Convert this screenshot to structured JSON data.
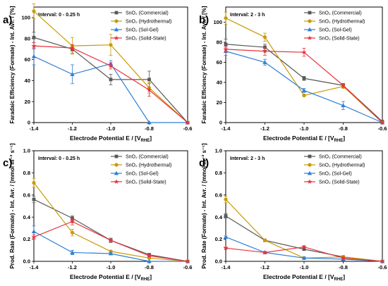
{
  "colors": {
    "commercial": "#595959",
    "hydrothermal": "#c99a06",
    "solgel": "#2e7fd6",
    "solidstate": "#e8333d"
  },
  "legend_labels": {
    "commercial": "SnO₂ (Commercial)",
    "hydrothermal": "SnO₂ (Hydrothermal)",
    "solgel": "SnO₂ (Sol-Gel)",
    "solidstate": "SnO₂ (Solid-State)"
  },
  "chart_data": [
    {
      "type": "line",
      "panel": "a)",
      "annotation": "Interval: 0 - 0.25 h",
      "xlabel": "Electrode Potential E / [V",
      "xlabel_sub": "RHE",
      "xlabel_end": "]",
      "ylabel": "Faradaic Efficiency (Formate) - Int. Avr. / [%]",
      "x": [
        -1.4,
        -1.2,
        -1.0,
        -0.8,
        -0.6
      ],
      "xticks": [
        "-1.4",
        "-1.2",
        "-1.0",
        "-0.8",
        "-0.6"
      ],
      "xlim": [
        -1.4,
        -0.6
      ],
      "ylim": [
        0,
        110
      ],
      "yticks": [
        0,
        20,
        40,
        60,
        80,
        100
      ],
      "series": [
        {
          "key": "commercial",
          "name": "SnO₂ (Commercial)",
          "values": [
            81,
            70,
            41,
            41,
            0
          ],
          "errors": [
            5,
            4,
            5,
            8,
            0
          ]
        },
        {
          "key": "hydrothermal",
          "name": "SnO₂ (Hydrothermal)",
          "values": [
            106,
            73,
            74,
            33,
            0
          ],
          "errors": [
            7,
            8,
            10,
            5,
            0
          ]
        },
        {
          "key": "solgel",
          "name": "SnO₂ (Sol-Gel)",
          "values": [
            63,
            46,
            56,
            0,
            0
          ],
          "errors": [
            8,
            9,
            3,
            0,
            0
          ]
        },
        {
          "key": "solidstate",
          "name": "SnO₂ (Solid-State)",
          "values": [
            73,
            71,
            54,
            31,
            0
          ],
          "errors": [
            3,
            3,
            3,
            6,
            0
          ]
        }
      ]
    },
    {
      "type": "line",
      "panel": "b)",
      "annotation": "Interval: 2 - 3 h",
      "xlabel": "Electrode Potential E / [V",
      "xlabel_sub": "RHE",
      "xlabel_end": "]",
      "ylabel": "Faradaic Efficiency (Formate) - Int. Avr. / [%]",
      "x": [
        -1.4,
        -1.2,
        -1.0,
        -0.8,
        -0.6
      ],
      "xticks": [
        "-1.4",
        "-1.2",
        "-1.0",
        "-0.8",
        "-0.6"
      ],
      "xlim": [
        -1.4,
        -0.6
      ],
      "ylim": [
        0,
        115
      ],
      "yticks": [
        0,
        20,
        40,
        60,
        80,
        100
      ],
      "series": [
        {
          "key": "commercial",
          "name": "SnO₂ (Commercial)",
          "values": [
            78,
            75,
            44,
            37,
            1
          ],
          "errors": [
            5,
            3,
            2,
            2,
            0
          ]
        },
        {
          "key": "hydrothermal",
          "name": "SnO₂ (Hydrothermal)",
          "values": [
            104,
            85,
            27,
            36,
            0
          ],
          "errors": [
            6,
            4,
            1,
            2,
            0
          ]
        },
        {
          "key": "solgel",
          "name": "SnO₂ (Sol-Gel)",
          "values": [
            71,
            60,
            32,
            17,
            0
          ],
          "errors": [
            4,
            3,
            2,
            4,
            0
          ]
        },
        {
          "key": "solidstate",
          "name": "SnO₂ (Solid-State)",
          "values": [
            73,
            71,
            70,
            37,
            0
          ],
          "errors": [
            3,
            4,
            4,
            2,
            0
          ]
        }
      ]
    },
    {
      "type": "line",
      "panel": "c)",
      "annotation": "Interval: 0 - 0.25 h",
      "xlabel": "Electrode Potential E / [V",
      "xlabel_sub": "RHE",
      "xlabel_end": "]",
      "ylabel": "Prod. Rate (Formate) - Int. Avr. / [mmol m⁻² s⁻¹]",
      "x": [
        -1.4,
        -1.2,
        -1.0,
        -0.8,
        -0.6
      ],
      "xticks": [
        "-1.4",
        "-1.2",
        "-1.0",
        "-0.8",
        "-0.6"
      ],
      "xlim": [
        -1.4,
        -0.6
      ],
      "ylim": [
        0,
        1.0
      ],
      "yticks": [
        0,
        0.2,
        0.4,
        0.6,
        0.8,
        1.0
      ],
      "ytick_labels": [
        "0.0",
        "0.2",
        "0.4",
        "0.6",
        "0.8",
        "1.0"
      ],
      "series": [
        {
          "key": "commercial",
          "name": "SnO₂ (Commercial)",
          "values": [
            0.56,
            0.39,
            0.19,
            0.06,
            0.0
          ],
          "errors": [
            0.03,
            0.02,
            0.02,
            0.01,
            0
          ]
        },
        {
          "key": "hydrothermal",
          "name": "SnO₂ (Hydrothermal)",
          "values": [
            0.71,
            0.26,
            0.09,
            0.03,
            0.0
          ],
          "errors": [
            0.04,
            0.03,
            0.01,
            0.01,
            0
          ]
        },
        {
          "key": "solgel",
          "name": "SnO₂ (Sol-Gel)",
          "values": [
            0.27,
            0.08,
            0.07,
            0.0,
            0.0
          ],
          "errors": [
            0.05,
            0.02,
            0.01,
            0,
            0
          ]
        },
        {
          "key": "solidstate",
          "name": "SnO₂ (Solid-State)",
          "values": [
            0.22,
            0.36,
            0.19,
            0.05,
            0.0
          ],
          "errors": [
            0.02,
            0.03,
            0.01,
            0.01,
            0
          ]
        }
      ]
    },
    {
      "type": "line",
      "panel": "d)",
      "annotation": "Interval: 2 - 3 h",
      "xlabel": "Electrode Potential E / [V",
      "xlabel_sub": "RHE",
      "xlabel_end": "]",
      "ylabel": "Prod. Rate (Formate) - Int. Avr. / [mmol m⁻² s⁻¹]",
      "x": [
        -1.4,
        -1.2,
        -1.0,
        -0.8,
        -0.6
      ],
      "xticks": [
        "-1.4",
        "-1.2",
        "-1.0",
        "-0.8",
        "-0.6"
      ],
      "xlim": [
        -1.4,
        -0.6
      ],
      "ylim": [
        0,
        1.0
      ],
      "yticks": [
        0,
        0.2,
        0.4,
        0.6,
        0.8,
        1.0
      ],
      "ytick_labels": [
        "0.0",
        "0.2",
        "0.4",
        "0.6",
        "0.8",
        "1.0"
      ],
      "series": [
        {
          "key": "commercial",
          "name": "SnO₂ (Commercial)",
          "values": [
            0.41,
            0.19,
            0.11,
            0.04,
            0.0
          ],
          "errors": [
            0.02,
            0.01,
            0.01,
            0.01,
            0
          ]
        },
        {
          "key": "hydrothermal",
          "name": "SnO₂ (Hydrothermal)",
          "values": [
            0.56,
            0.19,
            0.03,
            0.04,
            0.0
          ],
          "errors": [
            0.03,
            0.01,
            0.01,
            0.01,
            0
          ]
        },
        {
          "key": "solgel",
          "name": "SnO₂ (Sol-Gel)",
          "values": [
            0.22,
            0.08,
            0.03,
            0.02,
            0.0
          ],
          "errors": [
            0.01,
            0.01,
            0.01,
            0.01,
            0
          ]
        },
        {
          "key": "solidstate",
          "name": "SnO₂ (Solid-State)",
          "values": [
            0.12,
            0.08,
            0.13,
            0.03,
            0.0
          ],
          "errors": [
            0.01,
            0.01,
            0.01,
            0.01,
            0
          ]
        }
      ]
    }
  ]
}
